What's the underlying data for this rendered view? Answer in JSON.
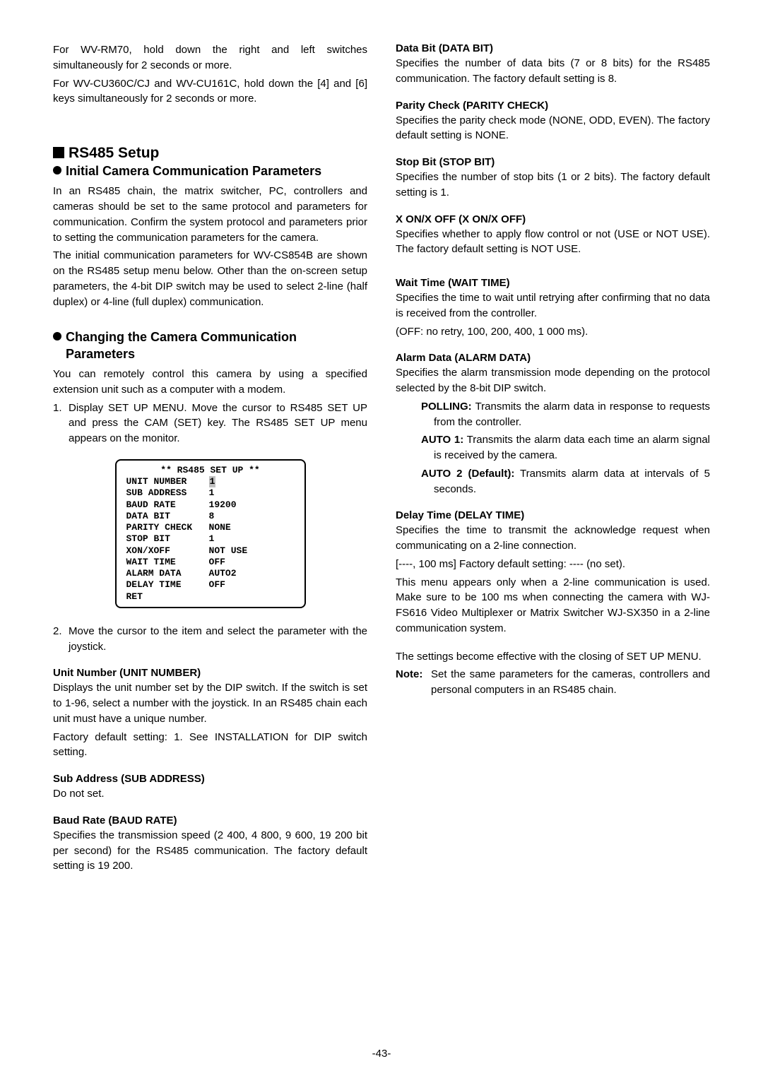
{
  "left": {
    "intro": [
      "For WV-RM70, hold down the right and left switches simultaneously for 2 seconds or more.",
      "For WV-CU360C/CJ and WV-CU161C, hold down the [4] and [6] keys simultaneously for 2 seconds or more."
    ],
    "rs485_heading": "RS485 Setup",
    "initial_heading": "Initial Camera Communication Parameters",
    "initial_paras": [
      "In an RS485 chain, the matrix switcher, PC, controllers and cameras should be set to the same protocol and parameters for communication. Confirm the system protocol and parameters prior to setting the communication parameters for the camera.",
      "The initial communication parameters for WV-CS854B are shown on the RS485 setup menu below. Other than the on-screen setup parameters, the 4-bit DIP switch may be used to select 2-line (half duplex) or 4-line (full duplex) communication."
    ],
    "changing_heading": "Changing the Camera Communication Parameters",
    "changing_intro": "You can remotely control this camera by using a specified extension unit such as a computer with a modem.",
    "step1": "Display SET UP MENU. Move the cursor to RS485 SET UP and press the CAM (SET) key. The RS485 SET UP menu appears on the monitor.",
    "step2": "Move the cursor to the item and select the parameter with the joystick.",
    "menu": {
      "title": "** RS485 SET UP **",
      "rows": [
        {
          "label": "UNIT NUMBER",
          "value": "1",
          "hl": true
        },
        {
          "label": "SUB ADDRESS",
          "value": "1"
        },
        {
          "label": "BAUD RATE",
          "value": "19200"
        },
        {
          "label": "DATA BIT",
          "value": "8"
        },
        {
          "label": "PARITY CHECK",
          "value": "NONE"
        },
        {
          "label": "STOP BIT",
          "value": "1"
        },
        {
          "label": "XON/XOFF",
          "value": "NOT USE"
        },
        {
          "label": "WAIT TIME",
          "value": "OFF"
        },
        {
          "label": "ALARM DATA",
          "value": "AUTO2"
        },
        {
          "label": "DELAY TIME",
          "value": "OFF"
        },
        {
          "label": "RET",
          "value": ""
        }
      ]
    },
    "unit_number_head": "Unit Number (UNIT NUMBER)",
    "unit_number_body": [
      "Displays the unit number set by the DIP switch. If the switch is set to 1-96, select a number with the joystick. In an RS485 chain each unit must have a unique number.",
      "Factory default setting: 1. See INSTALLATION for DIP switch setting."
    ],
    "sub_address_head": "Sub Address (SUB ADDRESS)",
    "sub_address_body": "Do not set.",
    "baud_rate_head": "Baud Rate (BAUD RATE)",
    "baud_rate_body": "Specifies the transmission speed (2 400, 4 800, 9 600, 19 200 bit per second) for the RS485 communication. The factory default setting is 19 200."
  },
  "right": {
    "data_bit_head": "Data Bit (DATA BIT)",
    "data_bit_body": "Specifies the number of data bits (7 or 8 bits) for the RS485 communication. The factory default setting is 8.",
    "parity_head": "Parity Check (PARITY CHECK)",
    "parity_body": "Specifies the parity check mode (NONE, ODD, EVEN). The factory default setting is NONE.",
    "stop_bit_head": "Stop Bit (STOP BIT)",
    "stop_bit_body": "Specifies the number of stop bits (1 or 2 bits). The factory default setting is 1.",
    "xon_head": "X ON/X OFF (X ON/X OFF)",
    "xon_body": "Specifies whether to apply flow control or not (USE or NOT USE). The factory default setting is NOT USE.",
    "wait_head": "Wait Time (WAIT TIME)",
    "wait_body": [
      "Specifies the time to wait until retrying after confirming that no data is received from the controller.",
      "(OFF: no retry, 100, 200, 400, 1 000 ms)."
    ],
    "alarm_head": "Alarm Data (ALARM DATA)",
    "alarm_intro": "Specifies the alarm transmission mode depending on the protocol selected by the 8-bit DIP switch.",
    "alarm_items": [
      {
        "label": "POLLING:",
        "text": " Transmits the alarm data in response to requests from the controller."
      },
      {
        "label": "AUTO 1:",
        "text": " Transmits the alarm data each time an alarm signal is received by the camera."
      },
      {
        "label": "AUTO 2 (Default):",
        "text": " Transmits alarm data at intervals of 5 seconds."
      }
    ],
    "delay_head": "Delay Time (DELAY TIME)",
    "delay_body": [
      "Specifies the time to transmit the acknowledge request when communicating on a 2-line connection.",
      "[----, 100 ms] Factory default setting: ---- (no set).",
      "This menu appears only when a 2-line communication is used. Make sure to be 100 ms when connecting the camera with WJ-FS616 Video Multiplexer or Matrix Switcher WJ-SX350 in a 2-line communication system."
    ],
    "closing": "The settings become effective with the closing of SET UP MENU.",
    "note_label": "Note:",
    "note_text": "Set the same parameters for the cameras, controllers and personal computers in an RS485 chain."
  },
  "page_number": "-43-"
}
